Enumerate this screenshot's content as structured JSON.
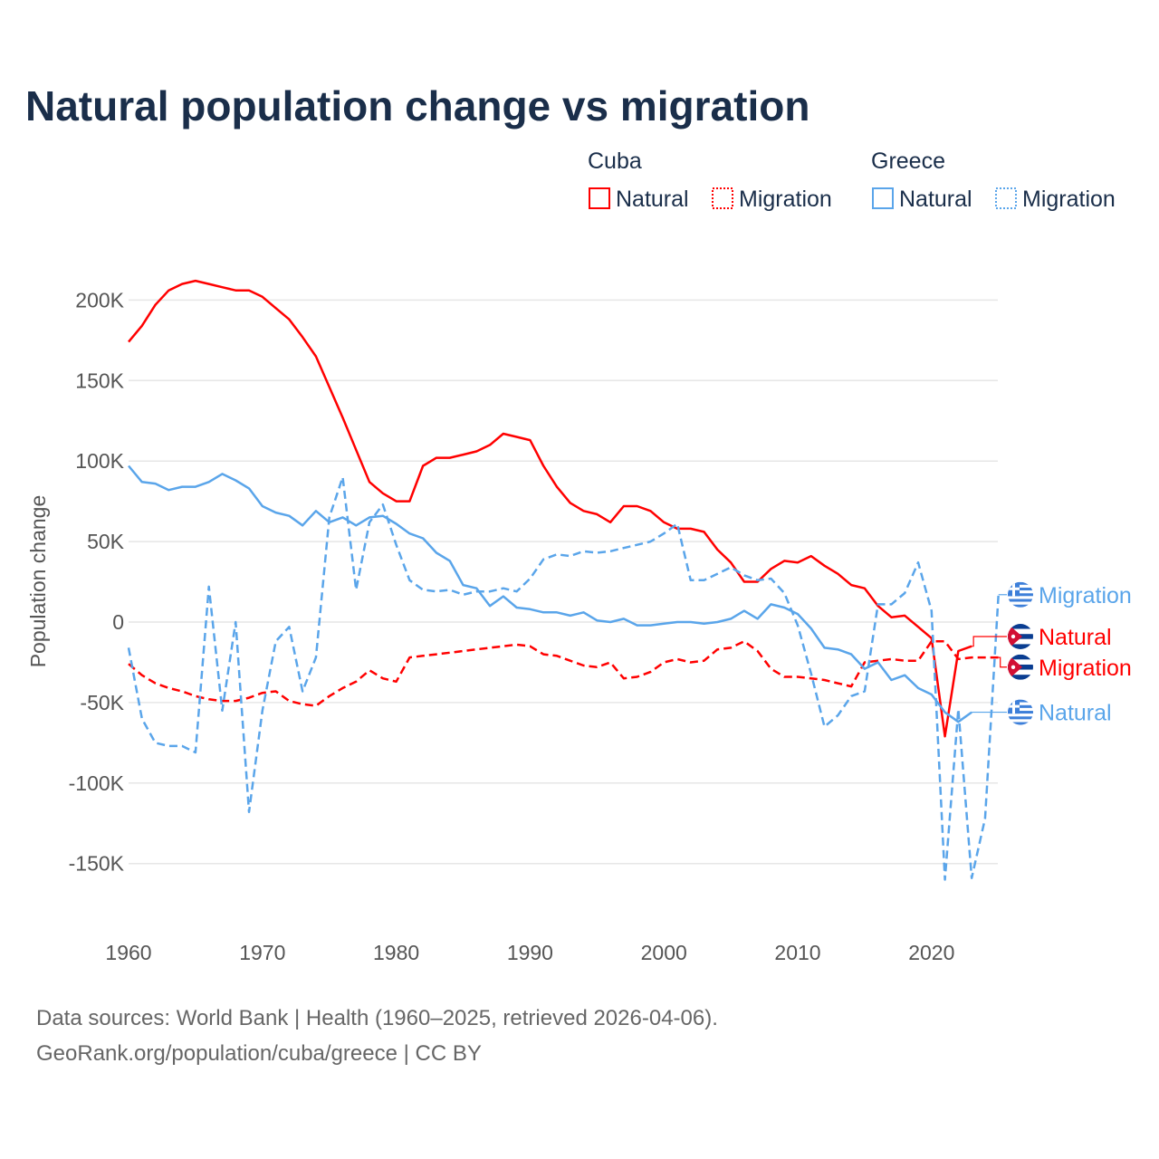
{
  "title": "Natural population change vs migration",
  "source_line1": "Data sources: World Bank | Health (1960–2025, retrieved 2026-04-06).",
  "source_line2": "GeoRank.org/population/cuba/greece | CC BY",
  "legend": {
    "groups": [
      {
        "country": "Cuba",
        "natural": "Natural",
        "migration": "Migration"
      },
      {
        "country": "Greece",
        "natural": "Natural",
        "migration": "Migration"
      }
    ]
  },
  "colors": {
    "cuba": "#ff0000",
    "greece": "#5aa5ea",
    "title": "#1a2e4a"
  },
  "chart_data": {
    "type": "line",
    "title": "Natural population change vs migration",
    "xlabel": "",
    "ylabel": "Population change",
    "xlim": [
      1960,
      2025
    ],
    "ylim": [
      -170000,
      220000
    ],
    "x_ticks": [
      1960,
      1970,
      1980,
      1990,
      2000,
      2010,
      2020
    ],
    "y_ticks": [
      {
        "v": 200000,
        "label": "200K"
      },
      {
        "v": 150000,
        "label": "150K"
      },
      {
        "v": 100000,
        "label": "100K"
      },
      {
        "v": 50000,
        "label": "50K"
      },
      {
        "v": 0,
        "label": "0"
      },
      {
        "v": -50000,
        "label": "-50K"
      },
      {
        "v": -100000,
        "label": "-100K"
      },
      {
        "v": -150000,
        "label": "-150K"
      }
    ],
    "grid": true,
    "legend_position": "top-right",
    "series": [
      {
        "name": "Cuba Natural",
        "label": "Natural",
        "country": "Cuba",
        "color": "#ff0000",
        "dashed": false,
        "start": 1960,
        "end_label_y": -9000,
        "values": [
          174,
          184,
          197,
          206,
          210,
          212,
          210,
          208,
          206,
          206,
          202,
          195,
          188,
          177,
          165,
          146,
          127,
          107,
          87,
          80,
          75,
          75,
          97,
          102,
          102,
          104,
          106,
          110,
          117,
          115,
          113,
          97,
          84,
          74,
          69,
          67,
          62,
          72,
          72,
          69,
          62,
          58,
          58,
          56,
          45,
          37,
          25,
          25,
          33,
          38,
          37,
          41,
          35,
          30,
          23,
          21,
          10,
          3,
          4,
          -3,
          -10,
          -71,
          -18,
          -15
        ]
      },
      {
        "name": "Cuba Migration",
        "label": "Migration",
        "country": "Cuba",
        "color": "#ff0000",
        "dashed": true,
        "start": 1960,
        "end_label_y": -28000,
        "values": [
          -26,
          -33,
          -38,
          -41,
          -43,
          -46,
          -48,
          -49,
          -49,
          -47,
          -44,
          -43,
          -49,
          -51,
          -52,
          -46,
          -41,
          -37,
          -30,
          -35,
          -37,
          -22,
          -21,
          -20,
          -19,
          -18,
          -17,
          -16,
          -15,
          -14,
          -15,
          -20,
          -21,
          -24,
          -27,
          -28,
          -25,
          -35,
          -34,
          -31,
          -25,
          -23,
          -25,
          -24,
          -17,
          -16,
          -12,
          -18,
          -29,
          -34,
          -34,
          -35,
          -36,
          -38,
          -40,
          -25,
          -24,
          -23,
          -24,
          -24,
          -12,
          -12,
          -23,
          -22,
          -22,
          -22
        ]
      },
      {
        "name": "Greece Natural",
        "label": "Natural",
        "country": "Greece",
        "color": "#5aa5ea",
        "dashed": false,
        "start": 1960,
        "end_label_y": -56000,
        "values": [
          97,
          87,
          86,
          82,
          84,
          84,
          87,
          92,
          88,
          83,
          72,
          68,
          66,
          60,
          69,
          62,
          65,
          60,
          65,
          66,
          61,
          55,
          52,
          43,
          38,
          23,
          21,
          10,
          16,
          9,
          8,
          6,
          6,
          4,
          6,
          1,
          0,
          2,
          -2,
          -2,
          -1,
          0,
          0,
          -1,
          0,
          2,
          7,
          2,
          11,
          9,
          5,
          -4,
          -16,
          -17,
          -20,
          -29,
          -25,
          -36,
          -33,
          -41,
          -45,
          -56,
          -62,
          -56
        ]
      },
      {
        "name": "Greece Migration",
        "label": "Migration",
        "country": "Greece",
        "color": "#5aa5ea",
        "dashed": true,
        "start": 1960,
        "end_label_y": 17000,
        "values": [
          -16,
          -60,
          -75,
          -77,
          -77,
          -81,
          22,
          -55,
          0,
          -118,
          -55,
          -12,
          -3,
          -43,
          -22,
          65,
          90,
          20,
          62,
          73,
          48,
          26,
          20,
          19,
          20,
          17,
          19,
          19,
          21,
          19,
          27,
          39,
          42,
          41,
          44,
          43,
          44,
          46,
          48,
          50,
          55,
          61,
          26,
          26,
          30,
          34,
          29,
          26,
          27,
          18,
          -2,
          -32,
          -65,
          -58,
          -46,
          -43,
          11,
          11,
          18,
          37,
          7,
          -160,
          -54,
          -159,
          -122,
          17
        ]
      }
    ],
    "value_unit": "thousands"
  }
}
